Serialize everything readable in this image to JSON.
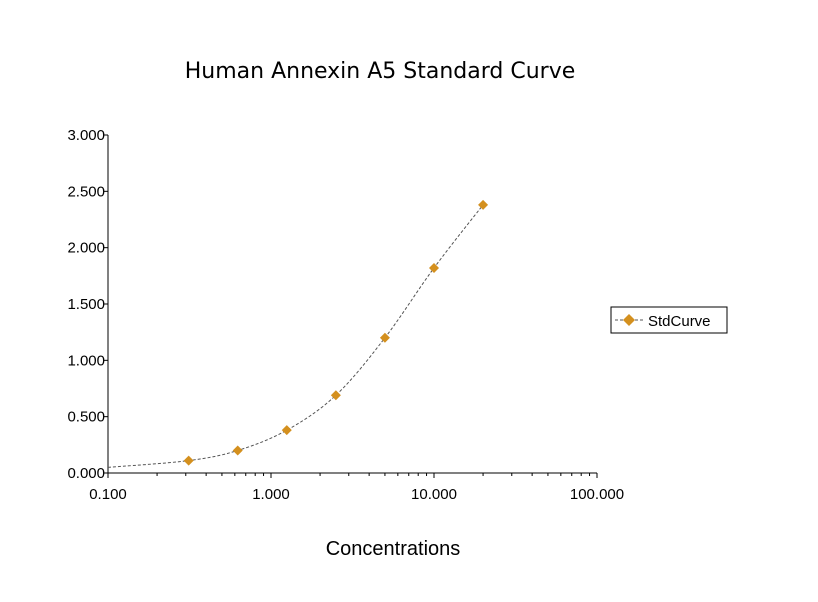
{
  "chart_data": {
    "type": "line",
    "title": "Human Annexin A5 Standard Curve",
    "xlabel": "Concentrations",
    "ylabel": "",
    "xscale": "log",
    "xlim": [
      0.1,
      100
    ],
    "ylim": [
      0,
      3
    ],
    "xticks": [
      "0.100",
      "1.000",
      "10.000",
      "100.000"
    ],
    "yticks": [
      "0.000",
      "0.500",
      "1.000",
      "1.500",
      "2.000",
      "2.500",
      "3.000"
    ],
    "xtick_values": [
      0.1,
      1,
      10,
      100
    ],
    "ytick_values": [
      0,
      0.5,
      1,
      1.5,
      2,
      2.5,
      3
    ],
    "grid": false,
    "legend_position": "right",
    "series": [
      {
        "name": "StdCurve",
        "x": [
          0.3125,
          0.625,
          1.25,
          2.5,
          5,
          10,
          20
        ],
        "y": [
          0.11,
          0.2,
          0.38,
          0.69,
          1.2,
          1.82,
          2.38
        ],
        "marker": "diamond",
        "marker_color": "#d4901e",
        "line_style": "dashed",
        "line_color": "#555555"
      }
    ],
    "fit_curve": {
      "x": [
        0.1,
        0.3125,
        0.625,
        1.25,
        2.5,
        5,
        10,
        20
      ],
      "y": [
        0.05,
        0.11,
        0.2,
        0.38,
        0.69,
        1.2,
        1.82,
        2.38
      ]
    }
  }
}
